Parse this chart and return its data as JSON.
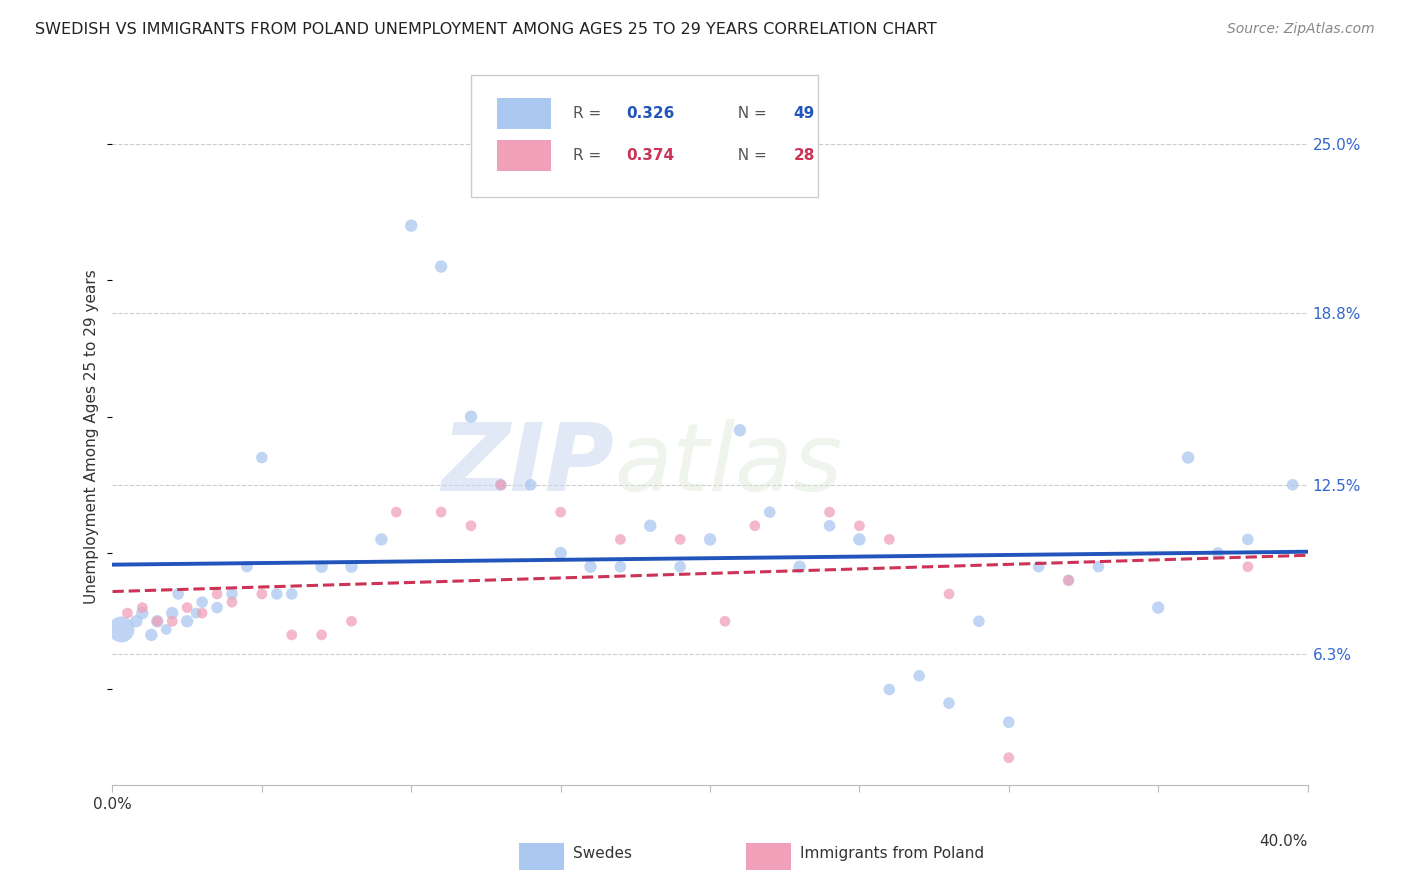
{
  "title": "SWEDISH VS IMMIGRANTS FROM POLAND UNEMPLOYMENT AMONG AGES 25 TO 29 YEARS CORRELATION CHART",
  "source": "Source: ZipAtlas.com",
  "ylabel": "Unemployment Among Ages 25 to 29 years",
  "ytick_labels": [
    "6.3%",
    "12.5%",
    "18.8%",
    "25.0%"
  ],
  "ytick_values": [
    6.3,
    12.5,
    18.8,
    25.0
  ],
  "xlim": [
    0.0,
    40.0
  ],
  "ylim": [
    1.5,
    27.0
  ],
  "legend_swedes_R": "0.326",
  "legend_swedes_N": "49",
  "legend_poland_R": "0.374",
  "legend_poland_N": "28",
  "swedes_color": "#aac8f0",
  "swedes_line_color": "#2255bb",
  "poland_color": "#f0a0b8",
  "poland_line_color": "#cc3355",
  "watermark_zip": "ZIP",
  "watermark_atlas": "atlas",
  "swedes_x": [
    0.3,
    0.8,
    1.0,
    1.3,
    1.5,
    1.8,
    2.0,
    2.2,
    2.5,
    2.8,
    3.0,
    3.5,
    4.0,
    4.5,
    5.0,
    5.5,
    6.0,
    7.0,
    8.0,
    9.0,
    10.0,
    11.0,
    12.0,
    13.0,
    14.0,
    15.0,
    16.0,
    17.0,
    18.0,
    19.0,
    20.0,
    21.0,
    22.0,
    23.0,
    24.0,
    25.0,
    26.0,
    27.0,
    28.0,
    29.0,
    30.0,
    31.0,
    32.0,
    33.0,
    35.0,
    36.0,
    37.0,
    38.0,
    39.5
  ],
  "swedes_y": [
    7.2,
    7.5,
    7.8,
    7.0,
    7.5,
    7.2,
    7.8,
    8.5,
    7.5,
    7.8,
    8.2,
    8.0,
    8.5,
    9.5,
    13.5,
    8.5,
    8.5,
    9.5,
    9.5,
    10.5,
    22.0,
    20.5,
    15.0,
    12.5,
    12.5,
    10.0,
    9.5,
    9.5,
    11.0,
    9.5,
    10.5,
    14.5,
    11.5,
    9.5,
    11.0,
    10.5,
    5.0,
    5.5,
    4.5,
    7.5,
    3.8,
    9.5,
    9.0,
    9.5,
    8.0,
    13.5,
    10.0,
    10.5,
    12.5
  ],
  "swedes_size": [
    350,
    80,
    80,
    80,
    80,
    60,
    80,
    70,
    80,
    60,
    70,
    70,
    70,
    70,
    70,
    70,
    70,
    80,
    80,
    80,
    80,
    80,
    80,
    70,
    70,
    80,
    80,
    70,
    80,
    70,
    80,
    80,
    70,
    80,
    70,
    80,
    70,
    70,
    70,
    70,
    70,
    70,
    70,
    70,
    80,
    80,
    70,
    70,
    70
  ],
  "poland_x": [
    0.5,
    1.0,
    1.5,
    2.0,
    2.5,
    3.0,
    3.5,
    4.0,
    5.0,
    6.0,
    7.0,
    8.0,
    9.5,
    11.0,
    12.0,
    13.0,
    15.0,
    17.0,
    19.0,
    20.5,
    21.5,
    24.0,
    25.0,
    26.0,
    28.0,
    30.0,
    32.0,
    38.0
  ],
  "poland_y": [
    7.8,
    8.0,
    7.5,
    7.5,
    8.0,
    7.8,
    8.5,
    8.2,
    8.5,
    7.0,
    7.0,
    7.5,
    11.5,
    11.5,
    11.0,
    12.5,
    11.5,
    10.5,
    10.5,
    7.5,
    11.0,
    11.5,
    11.0,
    10.5,
    8.5,
    2.5,
    9.0,
    9.5
  ],
  "poland_size": [
    60,
    60,
    60,
    60,
    60,
    60,
    60,
    60,
    60,
    60,
    60,
    60,
    60,
    60,
    60,
    60,
    60,
    60,
    60,
    60,
    60,
    60,
    60,
    60,
    60,
    60,
    60,
    60
  ]
}
